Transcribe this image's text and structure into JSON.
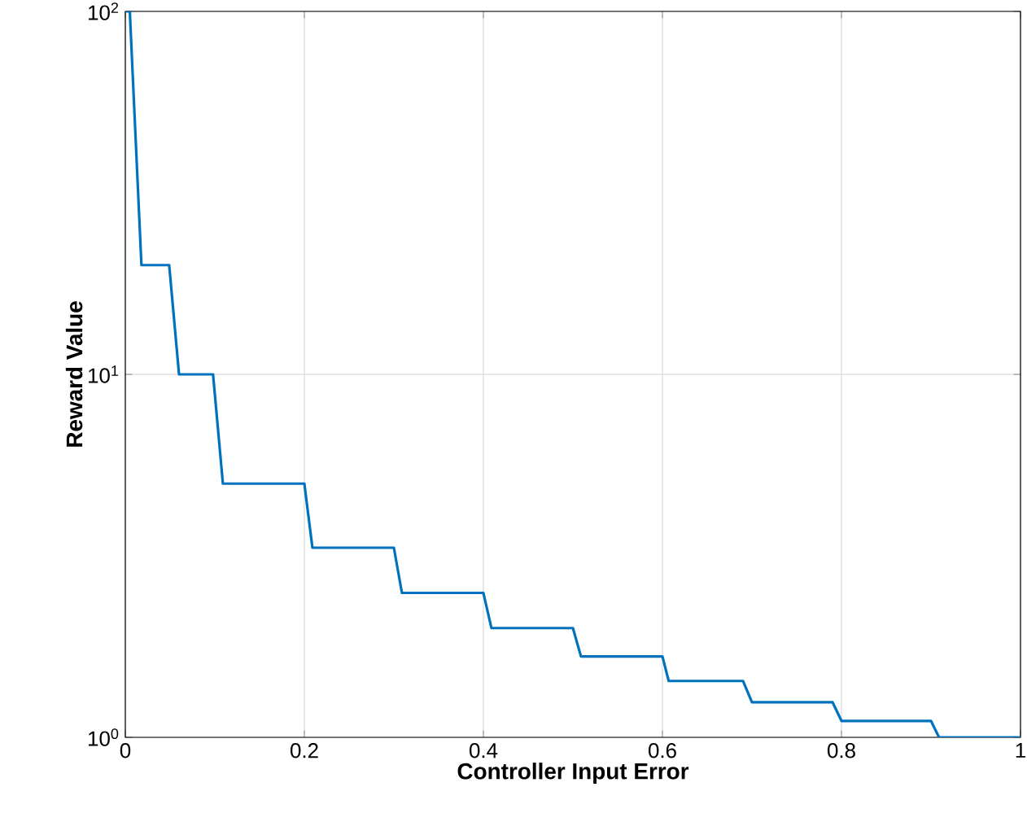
{
  "chart_data": {
    "type": "line",
    "xlabel": "Controller Input Error",
    "ylabel": "Reward Value",
    "x": [
      0.0,
      0.005,
      0.018,
      0.049,
      0.06,
      0.098,
      0.109,
      0.2,
      0.209,
      0.3,
      0.309,
      0.4,
      0.409,
      0.5,
      0.509,
      0.6,
      0.607,
      0.69,
      0.7,
      0.79,
      0.8,
      0.9,
      0.909,
      1.0
    ],
    "series": [
      {
        "color": "#0072bd",
        "values": [
          100,
          100,
          20,
          20,
          10,
          10,
          5,
          5,
          3.33,
          3.33,
          2.5,
          2.5,
          2,
          2,
          1.67,
          1.67,
          1.43,
          1.43,
          1.25,
          1.25,
          1.11,
          1.11,
          1,
          1
        ]
      }
    ],
    "log": "y",
    "xlim": [
      0,
      1
    ],
    "ylim": [
      1,
      100
    ],
    "xticks": [
      0,
      0.2,
      0.4,
      0.6,
      0.8,
      1
    ],
    "yticks": [
      {
        "value": 1,
        "label": "10$^{0}$"
      },
      {
        "value": 10,
        "label": "10$^{1}$"
      },
      {
        "value": 100,
        "label": "10$^{2}$"
      }
    ],
    "grid": true,
    "marker": "none",
    "line_style": "solid"
  }
}
